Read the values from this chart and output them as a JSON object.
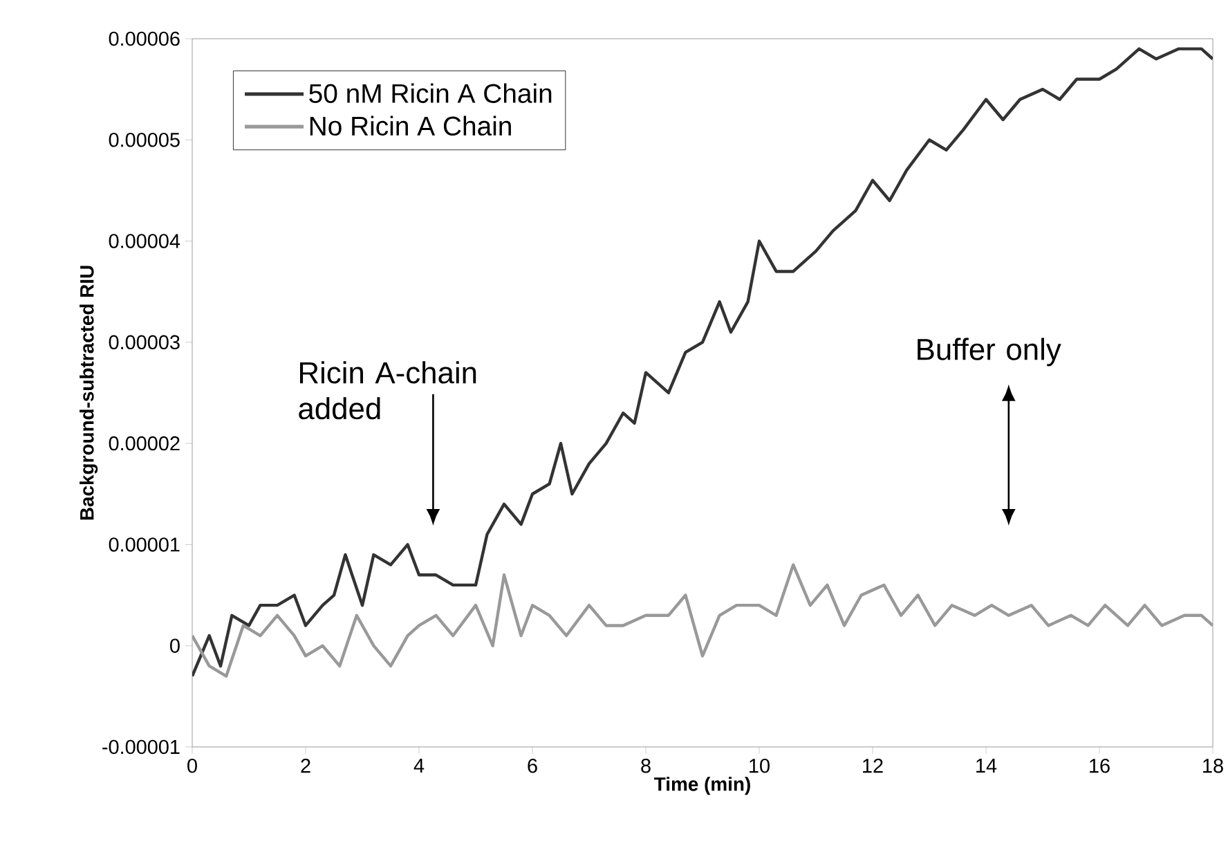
{
  "chart_data": {
    "type": "line",
    "xlabel": "Time (min)",
    "ylabel": "Background-subtracted RIU",
    "xlim": [
      0,
      18
    ],
    "xticks": [
      0,
      2,
      4,
      6,
      8,
      10,
      12,
      14,
      16,
      18
    ],
    "ylim": [
      -1e-05,
      6e-05
    ],
    "yticks": [
      {
        "value": -1e-05,
        "label": "-0.00001"
      },
      {
        "value": 0,
        "label": "0"
      },
      {
        "value": 1e-05,
        "label": "0.00001"
      },
      {
        "value": 2e-05,
        "label": "0.00002"
      },
      {
        "value": 3e-05,
        "label": "0.00003"
      },
      {
        "value": 4e-05,
        "label": "0.00004"
      },
      {
        "value": 5e-05,
        "label": "0.00005"
      },
      {
        "value": 6e-05,
        "label": "0.00006"
      }
    ],
    "grid": false,
    "legend": "top left",
    "line_style": "solid",
    "series": [
      {
        "name": "50 nM Ricin A Chain",
        "color": "#333333",
        "x": [
          0,
          0.3,
          0.5,
          0.7,
          1.0,
          1.2,
          1.5,
          1.8,
          2.0,
          2.3,
          2.5,
          2.7,
          3.0,
          3.2,
          3.5,
          3.8,
          4.0,
          4.3,
          4.6,
          5.0,
          5.2,
          5.5,
          5.8,
          6.0,
          6.3,
          6.5,
          6.7,
          7.0,
          7.3,
          7.6,
          7.8,
          8.0,
          8.4,
          8.7,
          9.0,
          9.3,
          9.5,
          9.8,
          10.0,
          10.3,
          10.6,
          11.0,
          11.3,
          11.7,
          12.0,
          12.3,
          12.6,
          13.0,
          13.3,
          13.6,
          14.0,
          14.3,
          14.6,
          15.0,
          15.3,
          15.6,
          16.0,
          16.3,
          16.7,
          17.0,
          17.4,
          17.8,
          18.0
        ],
        "values": [
          -3e-06,
          1e-06,
          -2e-06,
          3e-06,
          2e-06,
          4e-06,
          4e-06,
          5e-06,
          2e-06,
          4e-06,
          5e-06,
          9e-06,
          4e-06,
          9e-06,
          8e-06,
          1e-05,
          7e-06,
          7e-06,
          6e-06,
          6e-06,
          1.1e-05,
          1.4e-05,
          1.2e-05,
          1.5e-05,
          1.6e-05,
          2e-05,
          1.5e-05,
          1.8e-05,
          2e-05,
          2.3e-05,
          2.2e-05,
          2.7e-05,
          2.5e-05,
          2.9e-05,
          3e-05,
          3.4e-05,
          3.1e-05,
          3.4e-05,
          4e-05,
          3.7e-05,
          3.7e-05,
          3.9e-05,
          4.1e-05,
          4.3e-05,
          4.6e-05,
          4.4e-05,
          4.7e-05,
          5e-05,
          4.9e-05,
          5.1e-05,
          5.4e-05,
          5.2e-05,
          5.4e-05,
          5.5e-05,
          5.4e-05,
          5.6e-05,
          5.6e-05,
          5.7e-05,
          5.9e-05,
          5.8e-05,
          5.9e-05,
          5.9e-05,
          5.8e-05
        ]
      },
      {
        "name": "No Ricin A Chain",
        "color": "#999999",
        "x": [
          0,
          0.3,
          0.6,
          0.9,
          1.2,
          1.5,
          1.8,
          2.0,
          2.3,
          2.6,
          2.9,
          3.2,
          3.5,
          3.8,
          4.0,
          4.3,
          4.6,
          5.0,
          5.3,
          5.5,
          5.8,
          6.0,
          6.3,
          6.6,
          7.0,
          7.3,
          7.6,
          8.0,
          8.4,
          8.7,
          9.0,
          9.3,
          9.6,
          10.0,
          10.3,
          10.6,
          10.9,
          11.2,
          11.5,
          11.8,
          12.2,
          12.5,
          12.8,
          13.1,
          13.4,
          13.8,
          14.1,
          14.4,
          14.8,
          15.1,
          15.5,
          15.8,
          16.1,
          16.5,
          16.8,
          17.1,
          17.5,
          17.8,
          18.0
        ],
        "values": [
          1e-06,
          -2e-06,
          -3e-06,
          2e-06,
          1e-06,
          3e-06,
          1e-06,
          -1e-06,
          0,
          -2e-06,
          3e-06,
          0,
          -2e-06,
          1e-06,
          2e-06,
          3e-06,
          1e-06,
          4e-06,
          0,
          7e-06,
          1e-06,
          4e-06,
          3e-06,
          1e-06,
          4e-06,
          2e-06,
          2e-06,
          3e-06,
          3e-06,
          5e-06,
          -1e-06,
          3e-06,
          4e-06,
          4e-06,
          3e-06,
          8e-06,
          4e-06,
          6e-06,
          2e-06,
          5e-06,
          6e-06,
          3e-06,
          5e-06,
          2e-06,
          4e-06,
          3e-06,
          4e-06,
          3e-06,
          4e-06,
          2e-06,
          3e-06,
          2e-06,
          4e-06,
          2e-06,
          4e-06,
          2e-06,
          3e-06,
          3e-06,
          2e-06
        ]
      }
    ],
    "annotations": [
      "Ricin A-chain added",
      "Buffer only"
    ]
  }
}
